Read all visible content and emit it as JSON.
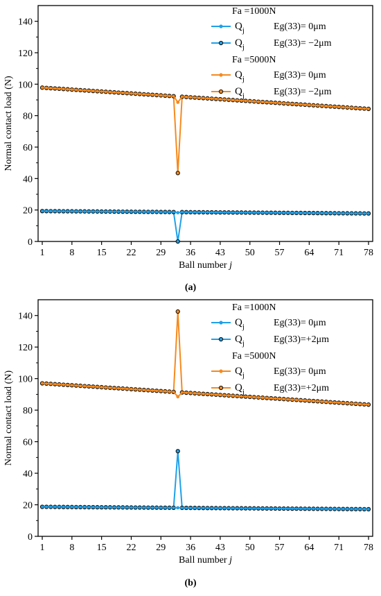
{
  "colors": {
    "blue": "#1fa0e8",
    "orange": "#f58a1f",
    "marker_outline": "#111111",
    "axis": "#000000"
  },
  "chart_data": [
    {
      "caption": "(a)",
      "type": "line",
      "ylabel": "Normal contact load (N)",
      "xlabel_main": "Ball number",
      "xlabel_var": "j",
      "xlim": [
        1,
        78
      ],
      "ylim": [
        0,
        150
      ],
      "xticks": [
        1,
        8,
        15,
        22,
        29,
        36,
        43,
        50,
        57,
        64,
        71,
        78
      ],
      "yticks": [
        0,
        20,
        40,
        60,
        80,
        100,
        120,
        140
      ],
      "legend": {
        "position": "top-right",
        "groups": [
          {
            "header": "Fa =1000N",
            "entries": [
              {
                "label": "Q",
                "sub": "j",
                "desc": "Eg(33)=  0μm",
                "series": 0
              },
              {
                "label": "Q",
                "sub": "j",
                "desc": "Eg(33)= −2μm",
                "series": 1
              }
            ]
          },
          {
            "header": "Fa =5000N",
            "entries": [
              {
                "label": "Q",
                "sub": "j",
                "desc": "Eg(33)=  0μm",
                "series": 2
              },
              {
                "label": "Q",
                "sub": "j",
                "desc": "Eg(33)= −2μm",
                "series": 3
              }
            ]
          }
        ]
      },
      "series": [
        {
          "color": "blue",
          "marker": "filled",
          "start": 19.3,
          "end": 17.8,
          "spike_at": 33,
          "spike_value": 18.3
        },
        {
          "color": "blue",
          "marker": "hollow",
          "start": 19.3,
          "end": 17.8,
          "spike_at": 33,
          "spike_value": 0
        },
        {
          "color": "orange",
          "marker": "filled",
          "start": 97.8,
          "end": 84.3,
          "spike_at": 33,
          "spike_value": 88.5
        },
        {
          "color": "orange",
          "marker": "hollow",
          "start": 97.8,
          "end": 84.3,
          "spike_at": 33,
          "spike_value": 43.5
        }
      ]
    },
    {
      "caption": "(b)",
      "type": "line",
      "ylabel": "Normal contact load (N)",
      "xlabel_main": "Ball number",
      "xlabel_var": "j",
      "xlim": [
        1,
        78
      ],
      "ylim": [
        0,
        150
      ],
      "xticks": [
        1,
        8,
        15,
        22,
        29,
        36,
        43,
        50,
        57,
        64,
        71,
        78
      ],
      "yticks": [
        0,
        20,
        40,
        60,
        80,
        100,
        120,
        140
      ],
      "legend": {
        "position": "top-right",
        "groups": [
          {
            "header": "Fa =1000N",
            "entries": [
              {
                "label": "Q",
                "sub": "j",
                "desc": "Eg(33)=  0μm",
                "series": 0
              },
              {
                "label": "Q",
                "sub": "j",
                "desc": "Eg(33)=+2μm",
                "series": 1
              }
            ]
          },
          {
            "header": "Fa =5000N",
            "entries": [
              {
                "label": "Q",
                "sub": "j",
                "desc": "Eg(33)=  0μm",
                "series": 2
              },
              {
                "label": "Q",
                "sub": "j",
                "desc": "Eg(33)=+2μm",
                "series": 3
              }
            ]
          }
        ]
      },
      "series": [
        {
          "color": "blue",
          "marker": "filled",
          "start": 18.7,
          "end": 17.2,
          "spike_at": 33,
          "spike_value": 18.1
        },
        {
          "color": "blue",
          "marker": "hollow",
          "start": 18.7,
          "end": 17.2,
          "spike_at": 33,
          "spike_value": 54.0
        },
        {
          "color": "orange",
          "marker": "filled",
          "start": 97.0,
          "end": 83.5,
          "spike_at": 33,
          "spike_value": 88.5
        },
        {
          "color": "orange",
          "marker": "hollow",
          "start": 97.0,
          "end": 83.5,
          "spike_at": 33,
          "spike_value": 142.5
        }
      ]
    }
  ]
}
